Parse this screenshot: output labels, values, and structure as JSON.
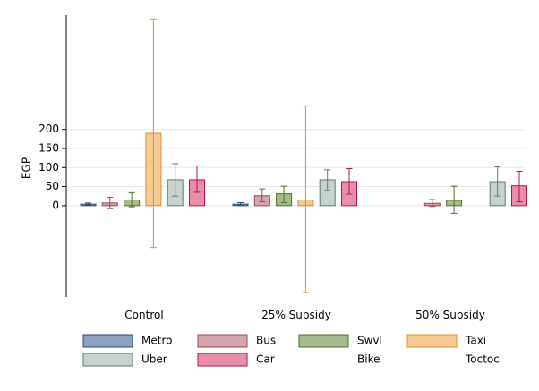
{
  "chart_data": {
    "type": "bar",
    "title": "",
    "xlabel": "",
    "ylabel": "EGP",
    "ylim": [
      -240,
      500
    ],
    "yticks": [
      0,
      50,
      100,
      150,
      200
    ],
    "grid": true,
    "legend_position": "bottom",
    "categories": [
      "Control",
      "25% Subsidy",
      "50% Subsidy"
    ],
    "series": [
      {
        "name": "Metro",
        "color": "#8ba1bd",
        "edge": "#2c4a70",
        "values": [
          4,
          4,
          null
        ],
        "ci_low": [
          2,
          1,
          null
        ],
        "ci_high": [
          7,
          8,
          null
        ]
      },
      {
        "name": "Bus",
        "color": "#d3a5ac",
        "edge": "#9e4752",
        "values": [
          7,
          26,
          6
        ],
        "ci_low": [
          -8,
          10,
          -2
        ],
        "ci_high": [
          22,
          44,
          16
        ]
      },
      {
        "name": "Swvl",
        "color": "#a8bc8b",
        "edge": "#4d6e2c",
        "values": [
          15,
          31,
          14
        ],
        "ci_low": [
          -3,
          8,
          -20
        ],
        "ci_high": [
          34,
          51,
          51
        ]
      },
      {
        "name": "Taxi",
        "color": "#f6c995",
        "edge": "#d98f2f",
        "values": [
          190,
          15,
          null
        ],
        "ci_low": [
          -110,
          -228,
          null
        ],
        "ci_high": [
          490,
          262,
          null
        ]
      },
      {
        "name": "Uber",
        "color": "#c6d3cc",
        "edge": "#5c7a70",
        "values": [
          68,
          68,
          63
        ],
        "ci_low": [
          25,
          40,
          25
        ],
        "ci_high": [
          110,
          94,
          102
        ]
      },
      {
        "name": "Car",
        "color": "#e98ea8",
        "edge": "#b0174a",
        "values": [
          68,
          63,
          52
        ],
        "ci_low": [
          35,
          30,
          10
        ],
        "ci_high": [
          104,
          97,
          90
        ]
      },
      {
        "name": "Bike",
        "color": "",
        "edge": "",
        "values": [
          null,
          null,
          null
        ],
        "ci_low": [
          null,
          null,
          null
        ],
        "ci_high": [
          null,
          null,
          null
        ]
      },
      {
        "name": "Toctoc",
        "color": "",
        "edge": "",
        "values": [
          null,
          null,
          null
        ],
        "ci_low": [
          null,
          null,
          null
        ],
        "ci_high": [
          null,
          null,
          null
        ]
      }
    ]
  }
}
